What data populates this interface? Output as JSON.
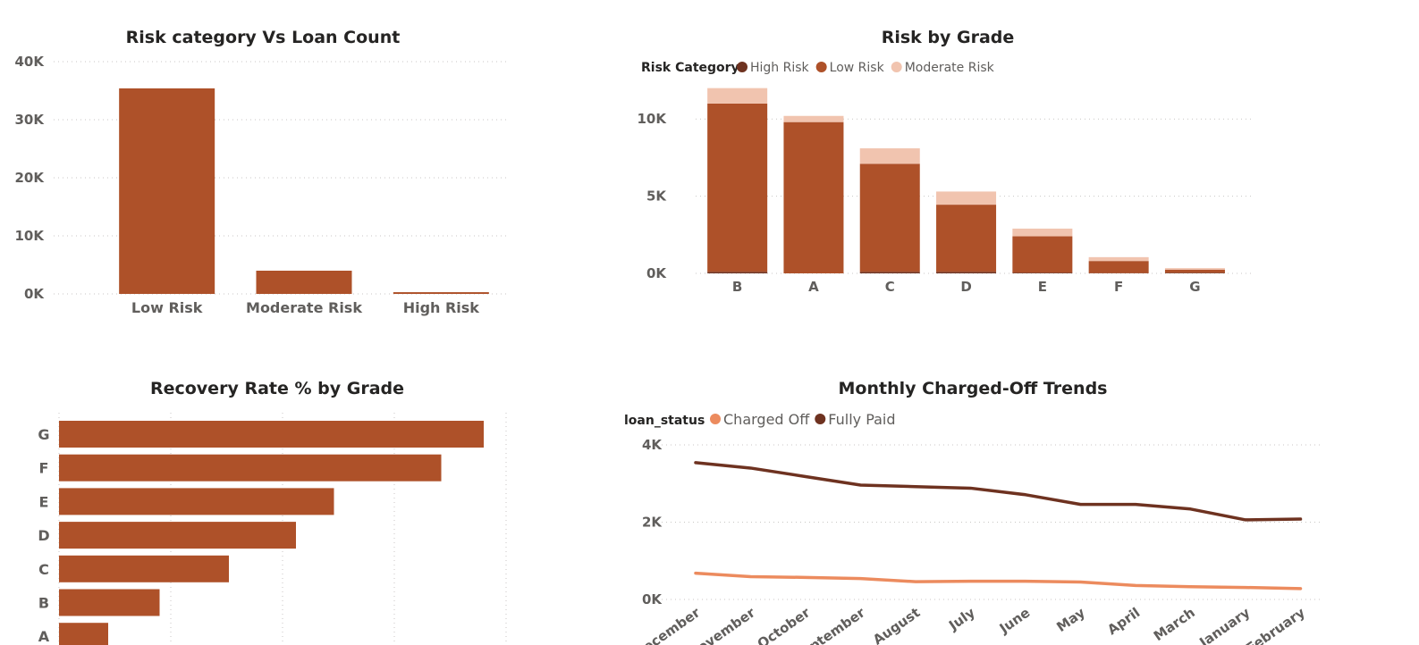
{
  "chart_data": [
    {
      "id": "risk-vs-loan-count",
      "type": "bar",
      "title": "Risk category Vs Loan Count",
      "categories": [
        "Low Risk",
        "Moderate Risk",
        "High Risk"
      ],
      "values": [
        35400,
        4000,
        300
      ],
      "ylim": [
        0,
        40000
      ],
      "yticks": [
        "0K",
        "10K",
        "20K",
        "30K",
        "40K"
      ],
      "color": "#ae5129",
      "grid": true
    },
    {
      "id": "risk-by-grade",
      "type": "bar",
      "stacked": true,
      "title": "Risk by Grade",
      "legend_title": "Risk Category",
      "categories": [
        "B",
        "A",
        "C",
        "D",
        "E",
        "F",
        "G"
      ],
      "series": [
        {
          "name": "High Risk",
          "color": "#6e3220",
          "values": [
            100,
            0,
            100,
            100,
            50,
            20,
            40
          ]
        },
        {
          "name": "Low Risk",
          "color": "#ae5129",
          "values": [
            10900,
            9800,
            7000,
            4350,
            2350,
            780,
            200
          ]
        },
        {
          "name": "Moderate Risk",
          "color": "#f1c4af",
          "values": [
            1000,
            400,
            1000,
            850,
            500,
            250,
            100
          ]
        }
      ],
      "ylim": [
        0,
        12500
      ],
      "yticks": [
        "0K",
        "5K",
        "10K"
      ],
      "grid": true,
      "legend_position": "top-left"
    },
    {
      "id": "recovery-rate-by-grade",
      "type": "bar",
      "orientation": "horizontal",
      "title": "Recovery Rate % by Grade",
      "categories": [
        "G",
        "F",
        "E",
        "D",
        "C",
        "B",
        "A"
      ],
      "values": [
        19.0,
        17.1,
        12.3,
        10.6,
        7.6,
        4.5,
        2.2
      ],
      "xlim": [
        0,
        20
      ],
      "color": "#ae5129",
      "grid": true
    },
    {
      "id": "monthly-charged-off-trends",
      "type": "line",
      "title": "Monthly Charged-Off Trends",
      "legend_title": "loan_status",
      "categories": [
        "December",
        "November",
        "October",
        "September",
        "August",
        "July",
        "June",
        "May",
        "April",
        "March",
        "January",
        "February"
      ],
      "series": [
        {
          "name": "Charged Off",
          "color": "#ec8b5e",
          "values": [
            680,
            590,
            570,
            540,
            460,
            470,
            470,
            450,
            360,
            330,
            310,
            280
          ]
        },
        {
          "name": "Fully Paid",
          "color": "#6e3220",
          "values": [
            3540,
            3400,
            3180,
            2960,
            2920,
            2880,
            2710,
            2460,
            2460,
            2340,
            2060,
            2080
          ]
        }
      ],
      "ylim": [
        0,
        4000
      ],
      "yticks": [
        "0K",
        "2K",
        "4K"
      ],
      "grid": true,
      "legend_position": "top-left"
    }
  ]
}
